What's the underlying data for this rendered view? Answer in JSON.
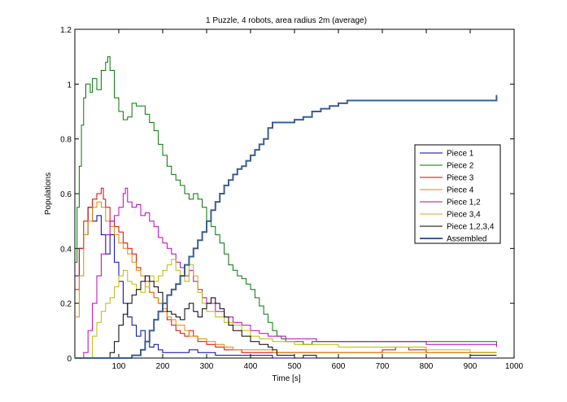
{
  "chart_data": {
    "type": "line",
    "title": "1 Puzzle, 4 robots, area radius 2m (average)",
    "xlabel": "Time [s]",
    "ylabel": "Populations",
    "xlim": [
      0,
      1000
    ],
    "ylim": [
      0,
      1.2
    ],
    "xticks": [
      100,
      200,
      300,
      400,
      500,
      600,
      700,
      800,
      900,
      1000
    ],
    "yticks": [
      0,
      0.2,
      0.4,
      0.6,
      0.8,
      1,
      1.2
    ],
    "xtick_labels": [
      "100",
      "200",
      "300",
      "400",
      "500",
      "600",
      "700",
      "800",
      "900",
      "1000"
    ],
    "ytick_labels": [
      "0",
      "0.2",
      "0.4",
      "0.6",
      "0.8",
      "1",
      "1.2"
    ],
    "grid": false,
    "legend_position": "right",
    "series": [
      {
        "name": "Piece 1",
        "color": "#0000aa",
        "width": 1,
        "x": [
          0,
          10,
          20,
          30,
          40,
          50,
          60,
          70,
          80,
          90,
          100,
          110,
          120,
          130,
          140,
          150,
          160,
          170,
          180,
          190,
          200,
          220,
          240,
          260,
          280,
          300,
          320,
          340,
          360,
          380,
          400,
          450,
          500,
          600,
          700,
          800,
          900,
          960
        ],
        "y": [
          0.3,
          0.4,
          0.45,
          0.55,
          0.5,
          0.52,
          0.45,
          0.38,
          0.45,
          0.35,
          0.28,
          0.2,
          0.15,
          0.12,
          0.08,
          0.1,
          0.06,
          0.04,
          0.05,
          0.03,
          0.02,
          0.02,
          0.02,
          0.03,
          0.02,
          0.02,
          0.01,
          0.01,
          0.01,
          0.01,
          0.01,
          0.0,
          0.0,
          0.0,
          0.0,
          0.0,
          0.0,
          0.0
        ]
      },
      {
        "name": "Piece 2",
        "color": "#007700",
        "width": 1,
        "x": [
          0,
          5,
          10,
          15,
          20,
          25,
          30,
          35,
          40,
          50,
          60,
          70,
          75,
          80,
          90,
          100,
          110,
          120,
          130,
          140,
          150,
          160,
          170,
          180,
          190,
          200,
          210,
          220,
          230,
          240,
          250,
          260,
          270,
          280,
          290,
          300,
          310,
          320,
          330,
          340,
          350,
          360,
          370,
          380,
          390,
          400,
          410,
          420,
          430,
          440,
          450,
          460,
          470,
          480,
          500,
          520,
          540,
          560,
          600,
          700,
          800,
          900,
          960
        ],
        "y": [
          0.35,
          0.55,
          0.7,
          0.85,
          0.95,
          1.0,
          1.0,
          0.97,
          1.02,
          0.98,
          1.05,
          1.08,
          1.1,
          1.05,
          0.95,
          0.9,
          0.87,
          0.88,
          0.93,
          0.92,
          0.92,
          0.89,
          0.86,
          0.83,
          0.78,
          0.74,
          0.7,
          0.67,
          0.65,
          0.63,
          0.6,
          0.58,
          0.6,
          0.58,
          0.55,
          0.5,
          0.48,
          0.45,
          0.42,
          0.38,
          0.34,
          0.32,
          0.3,
          0.29,
          0.27,
          0.25,
          0.22,
          0.19,
          0.16,
          0.13,
          0.1,
          0.08,
          0.07,
          0.06,
          0.06,
          0.05,
          0.06,
          0.06,
          0.06,
          0.06,
          0.06,
          0.06,
          0.05
        ]
      },
      {
        "name": "Piece 3",
        "color": "#dd0000",
        "width": 1,
        "x": [
          0,
          10,
          20,
          30,
          40,
          50,
          60,
          65,
          70,
          80,
          90,
          100,
          110,
          120,
          130,
          140,
          150,
          160,
          170,
          180,
          190,
          200,
          210,
          220,
          230,
          240,
          250,
          260,
          270,
          280,
          300,
          320,
          340,
          360,
          380,
          400,
          420,
          450,
          500,
          600,
          700,
          730,
          760,
          800,
          900,
          960
        ],
        "y": [
          0.25,
          0.4,
          0.5,
          0.55,
          0.58,
          0.6,
          0.62,
          0.58,
          0.55,
          0.5,
          0.48,
          0.46,
          0.42,
          0.4,
          0.38,
          0.33,
          0.3,
          0.28,
          0.24,
          0.22,
          0.2,
          0.17,
          0.14,
          0.12,
          0.1,
          0.09,
          0.08,
          0.1,
          0.08,
          0.06,
          0.05,
          0.04,
          0.03,
          0.03,
          0.02,
          0.02,
          0.02,
          0.02,
          0.02,
          0.02,
          0.03,
          0.04,
          0.03,
          0.02,
          0.02,
          0.02
        ]
      },
      {
        "name": "Piece 4",
        "color": "#dd8800",
        "width": 1,
        "x": [
          0,
          10,
          20,
          30,
          40,
          50,
          60,
          70,
          80,
          90,
          100,
          110,
          120,
          130,
          140,
          150,
          160,
          170,
          180,
          190,
          200,
          210,
          220,
          230,
          240,
          250,
          260,
          280,
          300,
          320,
          340,
          360,
          400,
          450,
          500,
          600,
          700,
          800,
          900,
          960
        ],
        "y": [
          0.15,
          0.3,
          0.45,
          0.5,
          0.55,
          0.57,
          0.55,
          0.5,
          0.48,
          0.45,
          0.42,
          0.4,
          0.38,
          0.35,
          0.32,
          0.3,
          0.26,
          0.24,
          0.22,
          0.2,
          0.18,
          0.15,
          0.14,
          0.12,
          0.12,
          0.1,
          0.08,
          0.07,
          0.06,
          0.05,
          0.04,
          0.03,
          0.03,
          0.02,
          0.02,
          0.02,
          0.02,
          0.02,
          0.02,
          0.02
        ]
      },
      {
        "name": "Piece 1,2",
        "color": "#bb00bb",
        "width": 1,
        "x": [
          0,
          20,
          30,
          40,
          50,
          60,
          70,
          80,
          90,
          100,
          110,
          115,
          120,
          130,
          140,
          150,
          160,
          170,
          180,
          190,
          200,
          210,
          220,
          230,
          240,
          250,
          260,
          270,
          280,
          290,
          300,
          320,
          340,
          360,
          380,
          400,
          420,
          440,
          460,
          480,
          500,
          550,
          600,
          700,
          800,
          900,
          960
        ],
        "y": [
          0.0,
          0.02,
          0.1,
          0.2,
          0.3,
          0.38,
          0.45,
          0.5,
          0.52,
          0.55,
          0.6,
          0.62,
          0.57,
          0.55,
          0.56,
          0.52,
          0.53,
          0.5,
          0.48,
          0.44,
          0.42,
          0.4,
          0.38,
          0.35,
          0.33,
          0.3,
          0.32,
          0.28,
          0.25,
          0.22,
          0.2,
          0.17,
          0.15,
          0.13,
          0.12,
          0.1,
          0.09,
          0.08,
          0.08,
          0.07,
          0.07,
          0.06,
          0.06,
          0.06,
          0.05,
          0.05,
          0.04
        ]
      },
      {
        "name": "Piece 3,4",
        "color": "#bbbb00",
        "width": 1,
        "x": [
          0,
          30,
          40,
          50,
          60,
          70,
          80,
          90,
          100,
          110,
          120,
          130,
          140,
          150,
          160,
          170,
          180,
          190,
          200,
          210,
          220,
          230,
          240,
          250,
          260,
          270,
          280,
          290,
          300,
          320,
          340,
          360,
          380,
          400,
          420,
          450,
          500,
          550,
          600,
          700,
          800,
          900,
          960
        ],
        "y": [
          0.0,
          0.0,
          0.08,
          0.13,
          0.17,
          0.2,
          0.22,
          0.26,
          0.3,
          0.32,
          0.28,
          0.27,
          0.25,
          0.24,
          0.26,
          0.3,
          0.28,
          0.3,
          0.32,
          0.34,
          0.36,
          0.32,
          0.3,
          0.28,
          0.34,
          0.3,
          0.24,
          0.2,
          0.17,
          0.15,
          0.13,
          0.12,
          0.1,
          0.08,
          0.07,
          0.06,
          0.05,
          0.05,
          0.04,
          0.04,
          0.03,
          0.02,
          0.02
        ]
      },
      {
        "name": "Piece 1,2,3,4",
        "color": "#000000",
        "width": 1,
        "x": [
          0,
          60,
          80,
          90,
          100,
          110,
          120,
          130,
          140,
          150,
          160,
          170,
          180,
          190,
          200,
          210,
          220,
          230,
          240,
          250,
          260,
          270,
          280,
          290,
          300,
          310,
          320,
          330,
          340,
          350,
          360,
          380,
          400,
          420,
          440,
          450,
          460,
          500,
          520,
          550,
          600,
          700,
          800,
          900,
          960
        ],
        "y": [
          0.0,
          0.0,
          0.02,
          0.06,
          0.12,
          0.16,
          0.2,
          0.23,
          0.25,
          0.28,
          0.3,
          0.28,
          0.26,
          0.24,
          0.2,
          0.17,
          0.16,
          0.15,
          0.14,
          0.18,
          0.2,
          0.17,
          0.15,
          0.18,
          0.2,
          0.22,
          0.2,
          0.18,
          0.15,
          0.12,
          0.1,
          0.08,
          0.06,
          0.05,
          0.04,
          0.03,
          0.01,
          0.0,
          0.01,
          0.0,
          0.0,
          0.0,
          0.0,
          0.01,
          0.01
        ]
      },
      {
        "name": "Assembled",
        "color": "#3b5f8f",
        "width": 2,
        "x": [
          0,
          100,
          130,
          150,
          160,
          170,
          180,
          190,
          200,
          210,
          220,
          230,
          240,
          250,
          260,
          270,
          280,
          290,
          300,
          310,
          320,
          330,
          340,
          350,
          360,
          370,
          380,
          390,
          400,
          410,
          420,
          430,
          440,
          450,
          460,
          480,
          500,
          520,
          540,
          560,
          580,
          600,
          620,
          650,
          700,
          800,
          900,
          960
        ],
        "y": [
          0.0,
          0.0,
          0.01,
          0.03,
          0.06,
          0.1,
          0.14,
          0.17,
          0.2,
          0.23,
          0.25,
          0.27,
          0.3,
          0.34,
          0.37,
          0.4,
          0.43,
          0.46,
          0.5,
          0.54,
          0.57,
          0.6,
          0.63,
          0.65,
          0.67,
          0.69,
          0.7,
          0.72,
          0.74,
          0.76,
          0.78,
          0.8,
          0.84,
          0.86,
          0.86,
          0.86,
          0.87,
          0.88,
          0.9,
          0.91,
          0.92,
          0.93,
          0.94,
          0.94,
          0.94,
          0.94,
          0.94,
          0.96
        ]
      }
    ]
  }
}
